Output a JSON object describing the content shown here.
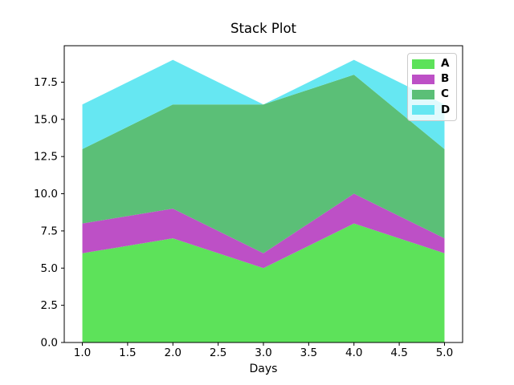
{
  "figure": {
    "background": "#ffffff",
    "axes_edge_color": "#000000",
    "text_color": "#000000"
  },
  "chart_data": {
    "type": "area",
    "stacked": true,
    "title": "Stack Plot",
    "xlabel": "Days",
    "ylabel": "",
    "x": [
      1,
      2,
      3,
      4,
      5
    ],
    "series": [
      {
        "name": "A",
        "color": "#5de25a",
        "values": [
          6,
          7,
          5,
          8,
          6
        ]
      },
      {
        "name": "B",
        "color": "#bd50c6",
        "values": [
          2,
          2,
          1,
          2,
          1
        ]
      },
      {
        "name": "C",
        "color": "#5bbf77",
        "values": [
          5,
          7,
          10,
          8,
          6
        ]
      },
      {
        "name": "D",
        "color": "#66e7f2",
        "values": [
          3,
          3,
          0,
          1,
          3
        ]
      }
    ],
    "cumulative_tops": {
      "A": [
        6,
        7,
        5,
        8,
        6
      ],
      "B": [
        8,
        9,
        6,
        10,
        7
      ],
      "C": [
        13,
        16,
        16,
        18,
        13
      ],
      "D": [
        16,
        19,
        16,
        19,
        16
      ]
    },
    "xlim": [
      0.8,
      5.2
    ],
    "ylim": [
      0,
      19.95
    ],
    "xticks": [
      1.0,
      1.5,
      2.0,
      2.5,
      3.0,
      3.5,
      4.0,
      4.5,
      5.0
    ],
    "yticks": [
      0.0,
      2.5,
      5.0,
      7.5,
      10.0,
      12.5,
      15.0,
      17.5
    ],
    "xtick_labels": [
      "1.0",
      "1.5",
      "2.0",
      "2.5",
      "3.0",
      "3.5",
      "4.0",
      "4.5",
      "5.0"
    ],
    "ytick_labels": [
      "0.0",
      "2.5",
      "5.0",
      "7.5",
      "10.0",
      "12.5",
      "15.0",
      "17.5"
    ],
    "legend_position": "upper right",
    "grid": false
  }
}
